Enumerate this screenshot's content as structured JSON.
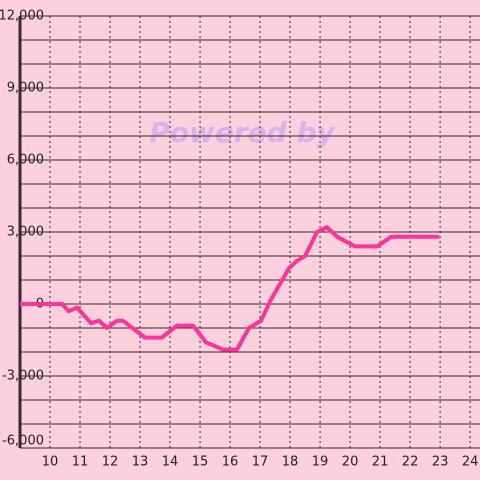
{
  "chart_data": {
    "type": "line",
    "watermark": "Powered by",
    "x": [
      9.0,
      10.4,
      10.63,
      10.9,
      11.37,
      11.63,
      11.9,
      12.23,
      12.43,
      13.17,
      13.73,
      14.23,
      14.77,
      15.2,
      15.77,
      16.23,
      16.63,
      17.03,
      17.37,
      17.97,
      18.23,
      18.5,
      18.9,
      19.23,
      19.57,
      20.17,
      20.9,
      21.37,
      22.97
    ],
    "series": [
      {
        "color": "#ff3399",
        "values": [
          0,
          0,
          -300,
          -150,
          -800,
          -700,
          -1000,
          -700,
          -700,
          -1400,
          -1400,
          -900,
          -900,
          -1600,
          -1900,
          -1900,
          -1000,
          -700,
          200,
          1500,
          1800,
          2000,
          3000,
          3200,
          2800,
          2400,
          2400,
          2800,
          2800
        ]
      }
    ],
    "xlim": [
      9,
      24.33
    ],
    "xticks": [
      10,
      11,
      12,
      13,
      14,
      15,
      16,
      17,
      18,
      19,
      20,
      21,
      22,
      23,
      24
    ],
    "ylim": [
      -6000,
      12000
    ],
    "yticks": [
      {
        "value": -6000,
        "label": "-6,000"
      },
      {
        "value": -3000,
        "label": "-3,000"
      },
      0,
      {
        "value": 3000,
        "label": "3,000"
      },
      {
        "value": 6000,
        "label": "6,000"
      },
      {
        "value": 9000,
        "label": "9,000"
      },
      {
        "value": 12000,
        "label": "12,000"
      }
    ],
    "grid": true
  }
}
